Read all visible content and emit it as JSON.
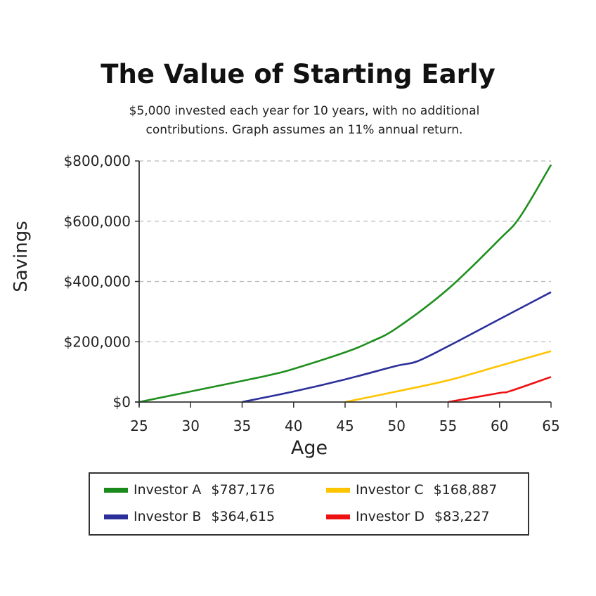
{
  "chart_data": {
    "type": "line",
    "title": "The Value of Starting Early",
    "subtitle": "$5,000 invested each year for 10 years, with no additional contributions. Graph assumes an 11% annual return.",
    "subtitle_lines": [
      "$5,000 invested each year for 10 years, with no additional",
      "contributions. Graph assumes an 11% annual return."
    ],
    "xlabel": "Age",
    "ylabel": "Savings",
    "xlim": [
      25,
      65
    ],
    "ylim": [
      0,
      800000
    ],
    "x_ticks": [
      25,
      30,
      35,
      40,
      45,
      50,
      55,
      60,
      65
    ],
    "y_ticks": [
      0,
      200000,
      400000,
      600000,
      800000
    ],
    "y_tick_labels": [
      "$0",
      "$200,000",
      "$400,000",
      "$600,000",
      "$800,000"
    ],
    "grid": "horizontal dashed",
    "legend_position": "bottom",
    "series": [
      {
        "name": "Investor A",
        "final_value": "$787,176",
        "color": "#1f8f1f",
        "x": [
          25,
          30,
          35,
          38,
          40,
          45,
          47.5,
          50,
          55,
          60,
          62,
          65
        ],
        "values": [
          0,
          35000,
          70000,
          92000,
          110000,
          165000,
          200000,
          245000,
          375000,
          540000,
          615000,
          787176
        ]
      },
      {
        "name": "Investor B",
        "final_value": "$364,615",
        "color": "#2b2f9a",
        "x": [
          35,
          40,
          45,
          50,
          52,
          55,
          60,
          65
        ],
        "values": [
          0,
          35000,
          75000,
          120000,
          135000,
          185000,
          275000,
          364615
        ]
      },
      {
        "name": "Investor C",
        "final_value": "$168,887",
        "color": "#ffc400",
        "x": [
          45,
          50,
          55,
          60,
          65
        ],
        "values": [
          0,
          35000,
          72000,
          120000,
          168887
        ]
      },
      {
        "name": "Investor D",
        "final_value": "$83,227",
        "color": "#ee1111",
        "x": [
          55,
          60,
          61,
          65
        ],
        "values": [
          0,
          30000,
          36000,
          83227
        ]
      }
    ]
  },
  "legend": {
    "items": [
      {
        "name": "Investor A",
        "value": "$787,176",
        "color": "#1a8a1a"
      },
      {
        "name": "Investor B",
        "value": "$364,615",
        "color": "#2b2f9a"
      },
      {
        "name": "Investor C",
        "value": "$168,887",
        "color": "#ffc400"
      },
      {
        "name": "Investor D",
        "value": "$83,227",
        "color": "#ee1111"
      }
    ]
  }
}
